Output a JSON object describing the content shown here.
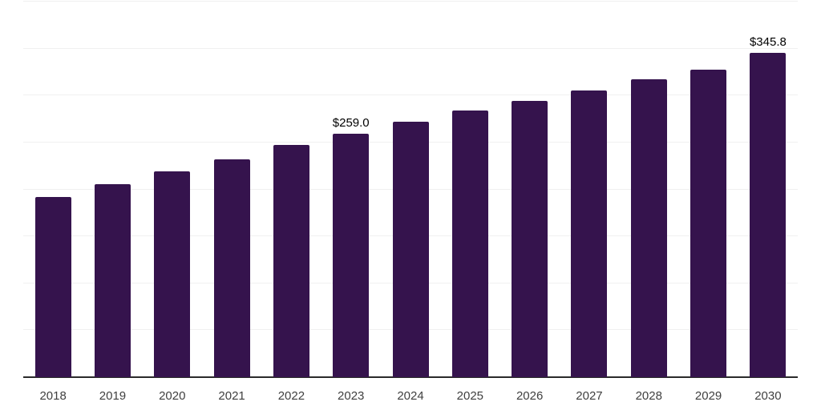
{
  "chart_data": {
    "type": "bar",
    "title": "",
    "xlabel": "",
    "ylabel": "",
    "categories": [
      "2018",
      "2019",
      "2020",
      "2021",
      "2022",
      "2023",
      "2024",
      "2025",
      "2026",
      "2027",
      "2028",
      "2029",
      "2030"
    ],
    "values": [
      192.1,
      205.5,
      218.9,
      232.0,
      247.6,
      259.0,
      271.8,
      284.0,
      294.5,
      305.6,
      317.0,
      327.7,
      345.8
    ],
    "value_labels": [
      "",
      "",
      "",
      "",
      "",
      "$259.0",
      "",
      "",
      "",
      "",
      "",
      "",
      "$345.8"
    ],
    "ylim": [
      0,
      400
    ],
    "gridline_step": 50,
    "grid": "horizontal",
    "y_tick_labels_visible": false,
    "legend": "none",
    "colors": {
      "bar": "#35134D",
      "gridline": "#F0F0F0",
      "axis_line": "#2B2B2B",
      "tick_label": "#3F3F3F",
      "value_label": "#000000",
      "background": "#FFFFFF"
    }
  }
}
